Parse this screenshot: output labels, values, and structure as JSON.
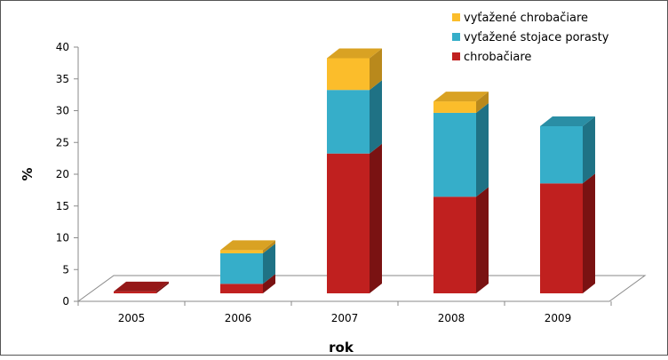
{
  "chart_data": {
    "type": "bar",
    "stacked": true,
    "three_d": true,
    "categories": [
      "2005",
      "2006",
      "2007",
      "2008",
      "2009"
    ],
    "series": [
      {
        "name": "chrobačiare",
        "values": [
          0.3,
          1.5,
          22,
          15.2,
          17.3
        ],
        "color": "#c0201f",
        "side_color": "#7a1212",
        "top_color": "#951818"
      },
      {
        "name": "vyťažené stojace porasty",
        "values": [
          0,
          4.8,
          10,
          13.2,
          9
        ],
        "color": "#36aec9",
        "side_color": "#1f7285",
        "top_color": "#2a8ea5"
      },
      {
        "name": "vyťažené chrobačiare",
        "values": [
          0,
          0.5,
          5,
          1.8,
          0
        ],
        "color": "#fbbd2b",
        "side_color": "#b9891c",
        "top_color": "#d9a223"
      }
    ],
    "legend_order": [
      2,
      1,
      0
    ],
    "xlabel": "rok",
    "ylabel": "%",
    "ylim": [
      0,
      40
    ],
    "yticks": [
      0,
      5,
      10,
      15,
      20,
      25,
      30,
      35,
      40
    ],
    "grid": false,
    "legend_position": "top-right"
  }
}
